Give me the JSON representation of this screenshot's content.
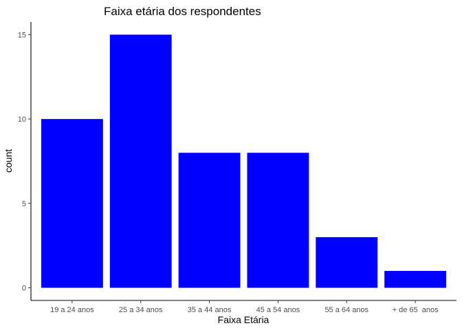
{
  "chart_data": {
    "type": "bar",
    "title": "Faixa etária dos respondentes",
    "xlabel": "Faixa Etária",
    "ylabel": "count",
    "categories": [
      "19 a 24 anos",
      "25 a 34 anos",
      "35 a 44 anos",
      "45 a 54 anos",
      "55 a 64 anos",
      "+ de 65  anos"
    ],
    "values": [
      10,
      15,
      8,
      8,
      3,
      1
    ],
    "yticks": [
      0,
      5,
      10,
      15
    ],
    "ylim": [
      -0.75,
      15.75
    ],
    "grid": false,
    "bar_color": "#0000FF"
  }
}
